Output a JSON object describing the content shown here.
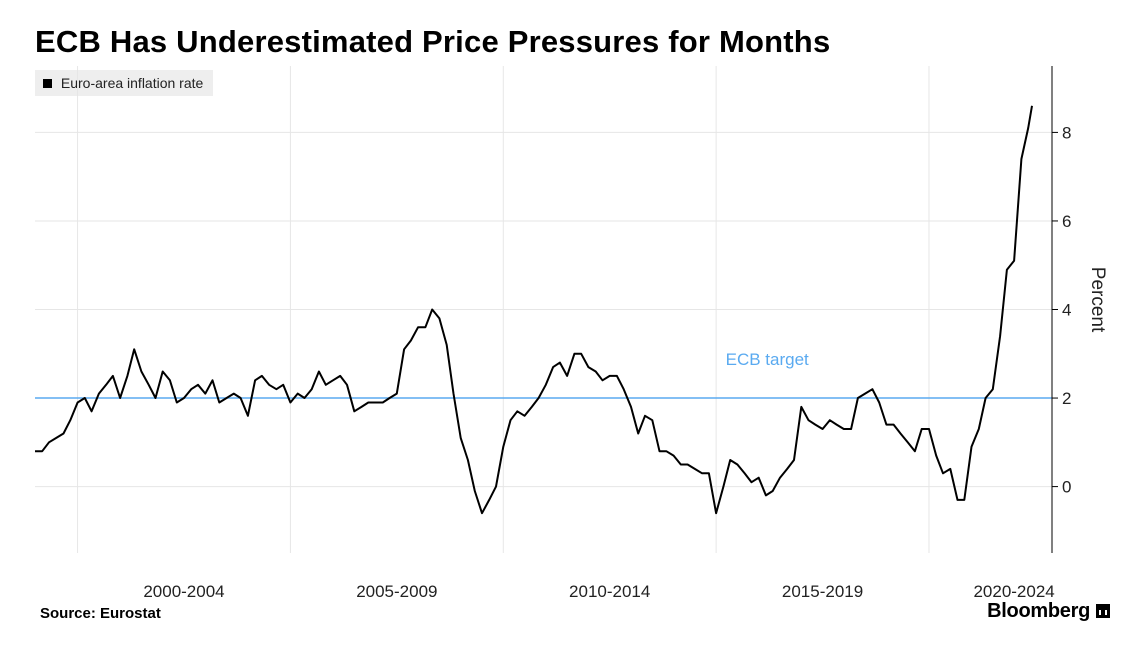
{
  "title": "ECB Has Underestimated Price Pressures for Months",
  "legend": {
    "label": "Euro-area inflation rate"
  },
  "source": "Source: Eurostat",
  "brand": "Bloomberg",
  "colors": {
    "series": "#000000",
    "target": "#5aaaf0",
    "grid": "#e6e6e6"
  },
  "chart_data": {
    "type": "line",
    "ylabel": "Percent",
    "ylim": [
      -1.5,
      9.5
    ],
    "yticks": [
      0,
      2,
      4,
      6,
      8
    ],
    "x_range": [
      1999,
      2022.42
    ],
    "x_periods": [
      {
        "label": "2000-2004",
        "start": 2000,
        "end": 2005
      },
      {
        "label": "2005-2009",
        "start": 2005,
        "end": 2010
      },
      {
        "label": "2010-2014",
        "start": 2010,
        "end": 2015
      },
      {
        "label": "2015-2019",
        "start": 2015,
        "end": 2020
      },
      {
        "label": "2020-2024",
        "start": 2020,
        "end": 2024
      }
    ],
    "target": {
      "label": "ECB target",
      "value": 2
    },
    "series": [
      {
        "name": "Euro-area inflation rate",
        "points": [
          [
            1999.0,
            0.8
          ],
          [
            1999.17,
            0.8
          ],
          [
            1999.33,
            1.0
          ],
          [
            1999.5,
            1.1
          ],
          [
            1999.67,
            1.2
          ],
          [
            1999.83,
            1.5
          ],
          [
            2000.0,
            1.9
          ],
          [
            2000.17,
            2.0
          ],
          [
            2000.33,
            1.7
          ],
          [
            2000.5,
            2.1
          ],
          [
            2000.67,
            2.3
          ],
          [
            2000.83,
            2.5
          ],
          [
            2001.0,
            2.0
          ],
          [
            2001.17,
            2.5
          ],
          [
            2001.33,
            3.1
          ],
          [
            2001.5,
            2.6
          ],
          [
            2001.67,
            2.3
          ],
          [
            2001.83,
            2.0
          ],
          [
            2002.0,
            2.6
          ],
          [
            2002.17,
            2.4
          ],
          [
            2002.33,
            1.9
          ],
          [
            2002.5,
            2.0
          ],
          [
            2002.67,
            2.2
          ],
          [
            2002.83,
            2.3
          ],
          [
            2003.0,
            2.1
          ],
          [
            2003.17,
            2.4
          ],
          [
            2003.33,
            1.9
          ],
          [
            2003.5,
            2.0
          ],
          [
            2003.67,
            2.1
          ],
          [
            2003.83,
            2.0
          ],
          [
            2004.0,
            1.6
          ],
          [
            2004.17,
            2.4
          ],
          [
            2004.33,
            2.5
          ],
          [
            2004.5,
            2.3
          ],
          [
            2004.67,
            2.2
          ],
          [
            2004.83,
            2.3
          ],
          [
            2005.0,
            1.9
          ],
          [
            2005.17,
            2.1
          ],
          [
            2005.33,
            2.0
          ],
          [
            2005.5,
            2.2
          ],
          [
            2005.67,
            2.6
          ],
          [
            2005.83,
            2.3
          ],
          [
            2006.0,
            2.4
          ],
          [
            2006.17,
            2.5
          ],
          [
            2006.33,
            2.3
          ],
          [
            2006.5,
            1.7
          ],
          [
            2006.67,
            1.8
          ],
          [
            2006.83,
            1.9
          ],
          [
            2007.0,
            1.9
          ],
          [
            2007.17,
            1.9
          ],
          [
            2007.33,
            2.0
          ],
          [
            2007.5,
            2.1
          ],
          [
            2007.67,
            3.1
          ],
          [
            2007.83,
            3.3
          ],
          [
            2008.0,
            3.6
          ],
          [
            2008.17,
            3.6
          ],
          [
            2008.33,
            4.0
          ],
          [
            2008.5,
            3.8
          ],
          [
            2008.67,
            3.2
          ],
          [
            2008.83,
            2.1
          ],
          [
            2009.0,
            1.1
          ],
          [
            2009.17,
            0.6
          ],
          [
            2009.33,
            -0.1
          ],
          [
            2009.5,
            -0.6
          ],
          [
            2009.67,
            -0.3
          ],
          [
            2009.83,
            0.0
          ],
          [
            2010.0,
            0.9
          ],
          [
            2010.17,
            1.5
          ],
          [
            2010.33,
            1.7
          ],
          [
            2010.5,
            1.6
          ],
          [
            2010.67,
            1.8
          ],
          [
            2010.83,
            2.0
          ],
          [
            2011.0,
            2.3
          ],
          [
            2011.17,
            2.7
          ],
          [
            2011.33,
            2.8
          ],
          [
            2011.5,
            2.5
          ],
          [
            2011.67,
            3.0
          ],
          [
            2011.83,
            3.0
          ],
          [
            2012.0,
            2.7
          ],
          [
            2012.17,
            2.6
          ],
          [
            2012.33,
            2.4
          ],
          [
            2012.5,
            2.5
          ],
          [
            2012.67,
            2.5
          ],
          [
            2012.83,
            2.2
          ],
          [
            2013.0,
            1.8
          ],
          [
            2013.17,
            1.2
          ],
          [
            2013.33,
            1.6
          ],
          [
            2013.5,
            1.5
          ],
          [
            2013.67,
            0.8
          ],
          [
            2013.83,
            0.8
          ],
          [
            2014.0,
            0.7
          ],
          [
            2014.17,
            0.5
          ],
          [
            2014.33,
            0.5
          ],
          [
            2014.5,
            0.4
          ],
          [
            2014.67,
            0.3
          ],
          [
            2014.83,
            0.3
          ],
          [
            2015.0,
            -0.6
          ],
          [
            2015.17,
            0.0
          ],
          [
            2015.33,
            0.6
          ],
          [
            2015.5,
            0.5
          ],
          [
            2015.67,
            0.3
          ],
          [
            2015.83,
            0.1
          ],
          [
            2016.0,
            0.2
          ],
          [
            2016.17,
            -0.2
          ],
          [
            2016.33,
            -0.1
          ],
          [
            2016.5,
            0.2
          ],
          [
            2016.67,
            0.4
          ],
          [
            2016.83,
            0.6
          ],
          [
            2017.0,
            1.8
          ],
          [
            2017.17,
            1.5
          ],
          [
            2017.33,
            1.4
          ],
          [
            2017.5,
            1.3
          ],
          [
            2017.67,
            1.5
          ],
          [
            2017.83,
            1.4
          ],
          [
            2018.0,
            1.3
          ],
          [
            2018.17,
            1.3
          ],
          [
            2018.33,
            2.0
          ],
          [
            2018.5,
            2.1
          ],
          [
            2018.67,
            2.2
          ],
          [
            2018.83,
            1.9
          ],
          [
            2019.0,
            1.4
          ],
          [
            2019.17,
            1.4
          ],
          [
            2019.33,
            1.2
          ],
          [
            2019.5,
            1.0
          ],
          [
            2019.67,
            0.8
          ],
          [
            2019.83,
            1.3
          ],
          [
            2020.0,
            1.3
          ],
          [
            2020.17,
            0.7
          ],
          [
            2020.33,
            0.3
          ],
          [
            2020.5,
            0.4
          ],
          [
            2020.67,
            -0.3
          ],
          [
            2020.83,
            -0.3
          ],
          [
            2021.0,
            0.9
          ],
          [
            2021.17,
            1.3
          ],
          [
            2021.33,
            2.0
          ],
          [
            2021.5,
            2.2
          ],
          [
            2021.67,
            3.4
          ],
          [
            2021.83,
            4.9
          ],
          [
            2022.0,
            5.1
          ],
          [
            2022.17,
            7.4
          ],
          [
            2022.33,
            8.1
          ],
          [
            2022.42,
            8.6
          ]
        ]
      }
    ]
  }
}
